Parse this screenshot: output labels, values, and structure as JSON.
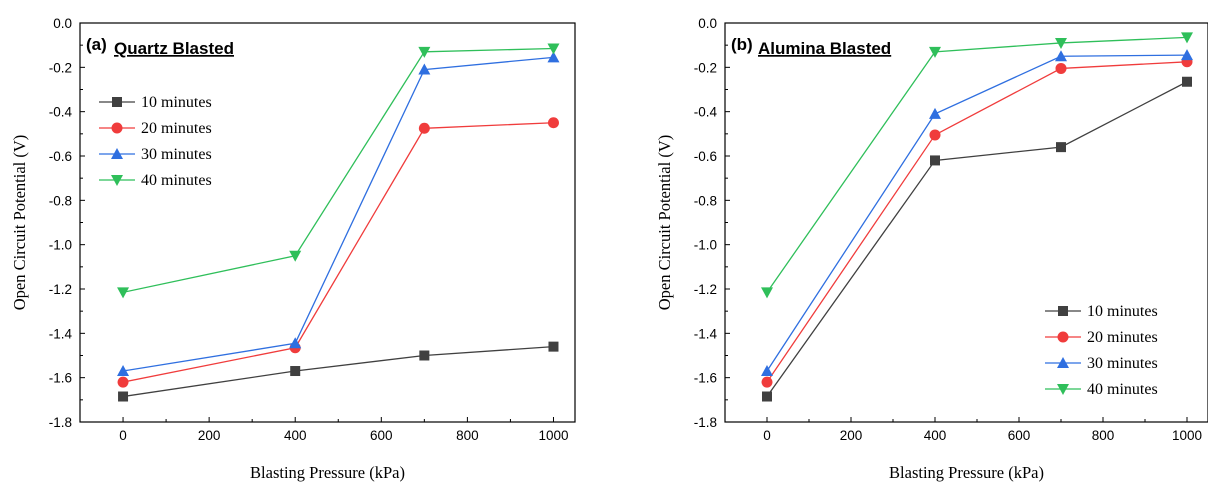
{
  "chart_data": [
    {
      "type": "line",
      "panel_label": "(a)",
      "title": "Quartz Blasted",
      "xlabel": "Blasting Pressure (kPa)",
      "ylabel": "Open Circuit Potential (V)",
      "xlim": [
        -100,
        1050
      ],
      "ylim": [
        -1.8,
        0.0
      ],
      "xticks": [
        0,
        200,
        400,
        600,
        800,
        1000
      ],
      "yticks": [
        0.0,
        -0.2,
        -0.4,
        -0.6,
        -0.8,
        -1.0,
        -1.2,
        -1.4,
        -1.6,
        -1.8
      ],
      "xtick_labels": [
        "0",
        "200",
        "400",
        "600",
        "800",
        "1000"
      ],
      "ytick_labels": [
        "0.0",
        "-0.2",
        "-0.4",
        "-0.6",
        "-0.8",
        "-1.0",
        "-1.2",
        "-1.4",
        "-1.6",
        "-1.8"
      ],
      "x": [
        0,
        400,
        700,
        1000
      ],
      "legend_position": "upper-left",
      "series": [
        {
          "name": "10 minutes",
          "values": [
            -1.685,
            -1.57,
            -1.5,
            -1.46
          ],
          "color": "#404040",
          "marker": "square"
        },
        {
          "name": "20 minutes",
          "values": [
            -1.62,
            -1.465,
            -0.475,
            -0.45
          ],
          "color": "#f03c3c",
          "marker": "circle"
        },
        {
          "name": "30 minutes",
          "values": [
            -1.57,
            -1.445,
            -0.21,
            -0.155
          ],
          "color": "#2f6fe0",
          "marker": "triangle-up"
        },
        {
          "name": "40 minutes",
          "values": [
            -1.215,
            -1.05,
            -0.13,
            -0.115
          ],
          "color": "#2fbf5a",
          "marker": "triangle-down"
        }
      ]
    },
    {
      "type": "line",
      "panel_label": "(b)",
      "title": "Alumina Blasted",
      "xlabel": "Blasting Pressure (kPa)",
      "ylabel": "Open Circuit Potential (V)",
      "xlim": [
        -100,
        1050
      ],
      "ylim": [
        -1.8,
        0.0
      ],
      "xticks": [
        0,
        200,
        400,
        600,
        800,
        1000
      ],
      "yticks": [
        0.0,
        -0.2,
        -0.4,
        -0.6,
        -0.8,
        -1.0,
        -1.2,
        -1.4,
        -1.6,
        -1.8
      ],
      "xtick_labels": [
        "0",
        "200",
        "400",
        "600",
        "800",
        "1000"
      ],
      "ytick_labels": [
        "0.0",
        "-0.2",
        "-0.4",
        "-0.6",
        "-0.8",
        "-1.0",
        "-1.2",
        "-1.4",
        "-1.6",
        "-1.8"
      ],
      "x": [
        0,
        400,
        700,
        1000
      ],
      "legend_position": "lower-right",
      "series": [
        {
          "name": "10 minutes",
          "values": [
            -1.685,
            -0.62,
            -0.56,
            -0.265
          ],
          "color": "#404040",
          "marker": "square"
        },
        {
          "name": "20 minutes",
          "values": [
            -1.62,
            -0.505,
            -0.205,
            -0.175
          ],
          "color": "#f03c3c",
          "marker": "circle"
        },
        {
          "name": "30 minutes",
          "values": [
            -1.57,
            -0.41,
            -0.15,
            -0.145
          ],
          "color": "#2f6fe0",
          "marker": "triangle-up"
        },
        {
          "name": "40 minutes",
          "values": [
            -1.215,
            -0.13,
            -0.09,
            -0.065
          ],
          "color": "#2fbf5a",
          "marker": "triangle-down"
        }
      ]
    }
  ]
}
